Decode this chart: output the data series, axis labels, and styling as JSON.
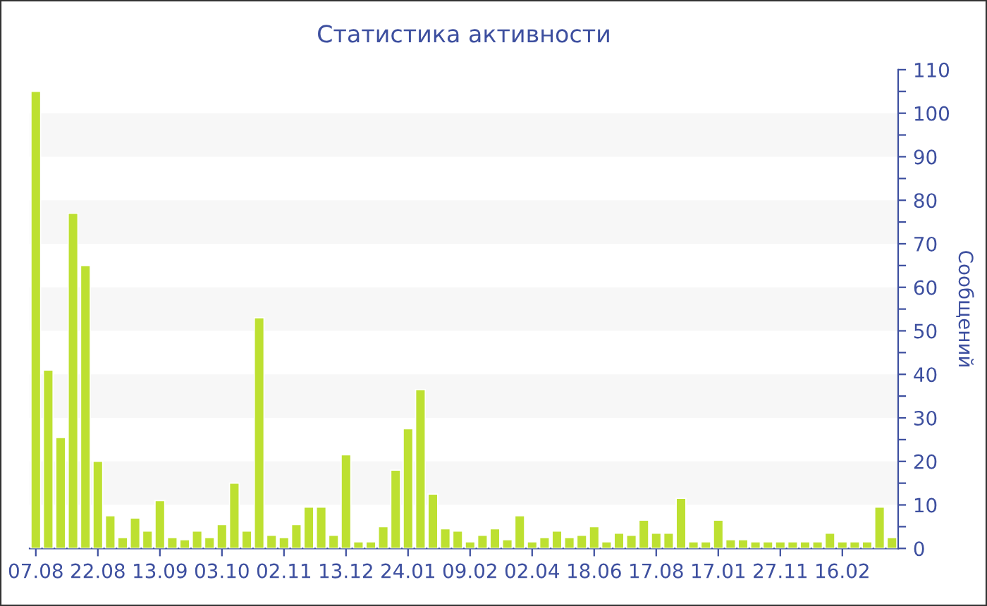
{
  "chart_data": {
    "type": "bar",
    "title": "Статистика активности",
    "ylabel": "Сообщений",
    "categories": [
      "07.08",
      null,
      null,
      null,
      null,
      "22.08",
      null,
      null,
      null,
      null,
      "13.09",
      null,
      null,
      null,
      null,
      "03.10",
      null,
      null,
      null,
      null,
      "02.11",
      null,
      null,
      null,
      null,
      "13.12",
      null,
      null,
      null,
      null,
      "24.01",
      null,
      null,
      null,
      null,
      "09.02",
      null,
      null,
      null,
      null,
      "02.04",
      null,
      null,
      null,
      null,
      "18.06",
      null,
      null,
      null,
      null,
      "17.08",
      null,
      null,
      null,
      null,
      "17.01",
      null,
      null,
      null,
      null,
      "27.11",
      null,
      null,
      null,
      null,
      "16.02",
      null,
      null,
      null,
      null
    ],
    "values": [
      105,
      41,
      25.5,
      77,
      65,
      20,
      7.5,
      2.5,
      7,
      4,
      11,
      2.5,
      2,
      4,
      2.5,
      5.5,
      15,
      4,
      53,
      3,
      2.5,
      5.5,
      9.5,
      9.5,
      3,
      21.5,
      1.5,
      1.5,
      5,
      18,
      27.5,
      36.5,
      12.5,
      4.5,
      4,
      1.5,
      3,
      4.5,
      2,
      7.5,
      1.5,
      2.5,
      4,
      2.5,
      3,
      5,
      1.5,
      3.5,
      3,
      6.5,
      3.5,
      3.5,
      11.5,
      1.5,
      1.5,
      6.5,
      2,
      2,
      1.5,
      1.5,
      1.5,
      1.5,
      1.5,
      1.5,
      3.5,
      1.5,
      1.5,
      1.5,
      9.5,
      2.5
    ],
    "color": "#bde031",
    "ylim": [
      0,
      110
    ],
    "yticks": [
      0,
      {
        "value": 5,
        "label": null
      },
      10,
      {
        "value": 15,
        "label": null
      },
      20,
      {
        "value": 25,
        "label": null
      },
      30,
      {
        "value": 35,
        "label": null
      },
      40,
      {
        "value": 45,
        "label": null
      },
      50,
      {
        "value": 55,
        "label": null
      },
      60,
      {
        "value": 65,
        "label": null
      },
      70,
      {
        "value": 75,
        "label": null
      },
      80,
      {
        "value": 85,
        "label": null
      },
      90,
      {
        "value": 95,
        "label": null
      },
      100,
      {
        "value": 105,
        "label": null
      },
      110
    ],
    "bands": [
      {
        "axis": "y",
        "from": 10,
        "to": 20,
        "color": "#f7f7f7"
      },
      {
        "axis": "y",
        "from": 30,
        "to": 40,
        "color": "#f7f7f7"
      },
      {
        "axis": "y",
        "from": 50,
        "to": 60,
        "color": "#f7f7f7"
      },
      {
        "axis": "y",
        "from": 70,
        "to": 80,
        "color": "#f7f7f7"
      },
      {
        "axis": "y",
        "from": 90,
        "to": 100,
        "color": "#f7f7f7"
      }
    ]
  }
}
